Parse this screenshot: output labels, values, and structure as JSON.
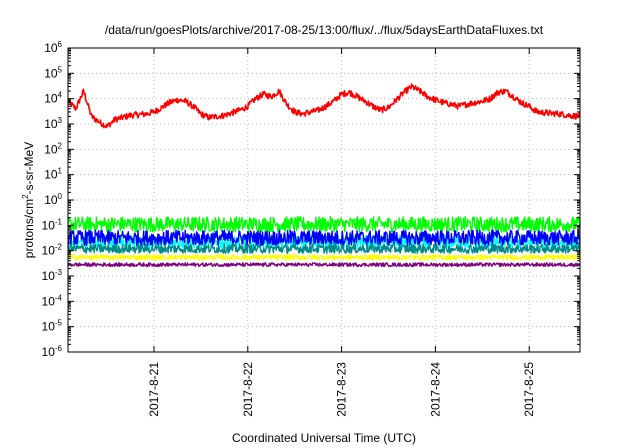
{
  "chart_data": {
    "type": "line",
    "title": "/data/run/goesPlots/archive/2017-08-25/13:00/flux/../flux/5daysEarthDataFluxes.txt",
    "xlabel": "Coordinated Universal Time (UTC)",
    "ylabel": {
      "prefix": "protons/cm",
      "sup": "2",
      "suffix": "-s-sr-MeV"
    },
    "y_scale": "log",
    "ylim_exp": [
      -6,
      6
    ],
    "y_ticks": [
      {
        "base": "10",
        "exp": "-6"
      },
      {
        "base": "10",
        "exp": "-5"
      },
      {
        "base": "10",
        "exp": "-4"
      },
      {
        "base": "10",
        "exp": "-3"
      },
      {
        "base": "10",
        "exp": "-2"
      },
      {
        "base": "10",
        "exp": "-1"
      },
      {
        "base": "10",
        "exp": "0"
      },
      {
        "base": "10",
        "exp": "1"
      },
      {
        "base": "10",
        "exp": "2"
      },
      {
        "base": "10",
        "exp": "3"
      },
      {
        "base": "10",
        "exp": "4"
      },
      {
        "base": "10",
        "exp": "5"
      },
      {
        "base": "10",
        "exp": "6"
      }
    ],
    "xlim": [
      "2017-08-20T02:00",
      "2017-08-25T13:00"
    ],
    "x_ticks": [
      {
        "label": "2017-8-21",
        "at": "2017-08-21T00:00"
      },
      {
        "label": "2017-8-22",
        "at": "2017-08-22T00:00"
      },
      {
        "label": "2017-8-23",
        "at": "2017-08-23T00:00"
      },
      {
        "label": "2017-8-24",
        "at": "2017-08-24T00:00"
      },
      {
        "label": "2017-8-25",
        "at": "2017-08-25T00:00"
      }
    ],
    "grid": true,
    "legend": "none",
    "series": [
      {
        "color": "#ff0000",
        "noise": 0.12,
        "points": [
          [
            "2017-08-20T02:00",
            8000
          ],
          [
            "2017-08-20T04:00",
            4000
          ],
          [
            "2017-08-20T06:00",
            20000
          ],
          [
            "2017-08-20T08:00",
            2000
          ],
          [
            "2017-08-20T10:00",
            1200
          ],
          [
            "2017-08-20T12:00",
            800
          ],
          [
            "2017-08-20T14:00",
            1500
          ],
          [
            "2017-08-20T18:00",
            2200
          ],
          [
            "2017-08-20T22:00",
            2500
          ],
          [
            "2017-08-21T00:00",
            3000
          ],
          [
            "2017-08-21T02:00",
            4500
          ],
          [
            "2017-08-21T04:00",
            7000
          ],
          [
            "2017-08-21T06:00",
            9000
          ],
          [
            "2017-08-21T08:00",
            8000
          ],
          [
            "2017-08-21T10:00",
            5000
          ],
          [
            "2017-08-21T12:00",
            2500
          ],
          [
            "2017-08-21T14:00",
            1800
          ],
          [
            "2017-08-21T18:00",
            2200
          ],
          [
            "2017-08-21T22:00",
            3500
          ],
          [
            "2017-08-22T00:00",
            5000
          ],
          [
            "2017-08-22T02:00",
            10000
          ],
          [
            "2017-08-22T04:00",
            15000
          ],
          [
            "2017-08-22T06:00",
            12000
          ],
          [
            "2017-08-22T08:00",
            20000
          ],
          [
            "2017-08-22T10:00",
            6000
          ],
          [
            "2017-08-22T12:00",
            3000
          ],
          [
            "2017-08-22T14:00",
            2500
          ],
          [
            "2017-08-22T18:00",
            3500
          ],
          [
            "2017-08-22T20:00",
            5000
          ],
          [
            "2017-08-22T22:00",
            8000
          ],
          [
            "2017-08-23T00:00",
            15000
          ],
          [
            "2017-08-23T02:00",
            18000
          ],
          [
            "2017-08-23T04:00",
            12000
          ],
          [
            "2017-08-23T06:00",
            8000
          ],
          [
            "2017-08-23T08:00",
            5000
          ],
          [
            "2017-08-23T10:00",
            3500
          ],
          [
            "2017-08-23T12:00",
            4500
          ],
          [
            "2017-08-23T14:00",
            9000
          ],
          [
            "2017-08-23T16:00",
            18000
          ],
          [
            "2017-08-23T18:00",
            30000
          ],
          [
            "2017-08-23T20:00",
            20000
          ],
          [
            "2017-08-23T22:00",
            12000
          ],
          [
            "2017-08-24T00:00",
            9000
          ],
          [
            "2017-08-24T02:00",
            7000
          ],
          [
            "2017-08-24T04:00",
            6000
          ],
          [
            "2017-08-24T06:00",
            5000
          ],
          [
            "2017-08-24T08:00",
            6000
          ],
          [
            "2017-08-24T10:00",
            7000
          ],
          [
            "2017-08-24T12:00",
            8000
          ],
          [
            "2017-08-24T14:00",
            10000
          ],
          [
            "2017-08-24T16:00",
            18000
          ],
          [
            "2017-08-24T18:00",
            20000
          ],
          [
            "2017-08-24T20:00",
            12000
          ],
          [
            "2017-08-24T22:00",
            7000
          ],
          [
            "2017-08-25T00:00",
            5000
          ],
          [
            "2017-08-25T02:00",
            3000
          ],
          [
            "2017-08-25T04:00",
            2800
          ],
          [
            "2017-08-25T06:00",
            2600
          ],
          [
            "2017-08-25T08:00",
            2500
          ],
          [
            "2017-08-25T10:00",
            2200
          ],
          [
            "2017-08-25T13:00",
            2000
          ]
        ]
      },
      {
        "color": "#00ff00",
        "noise": 0.3,
        "points": [
          [
            "2017-08-20T02:00",
            0.11
          ],
          [
            "2017-08-25T13:00",
            0.11
          ]
        ]
      },
      {
        "color": "#00ffff",
        "noise": 0.25,
        "points": [
          [
            "2017-08-20T02:00",
            0.022
          ],
          [
            "2017-08-25T13:00",
            0.022
          ]
        ]
      },
      {
        "color": "#0000ff",
        "noise": 0.3,
        "points": [
          [
            "2017-08-20T02:00",
            0.032
          ],
          [
            "2017-08-25T13:00",
            0.032
          ]
        ]
      },
      {
        "color": "#008b8b",
        "noise": 0.18,
        "points": [
          [
            "2017-08-20T02:00",
            0.012
          ],
          [
            "2017-08-25T13:00",
            0.012
          ]
        ]
      },
      {
        "color": "#ffff00",
        "noise": 0.1,
        "points": [
          [
            "2017-08-20T02:00",
            0.0055
          ],
          [
            "2017-08-25T13:00",
            0.0055
          ]
        ]
      },
      {
        "color": "#800080",
        "noise": 0.07,
        "points": [
          [
            "2017-08-20T02:00",
            0.0028
          ],
          [
            "2017-08-25T13:00",
            0.0028
          ]
        ]
      }
    ]
  }
}
